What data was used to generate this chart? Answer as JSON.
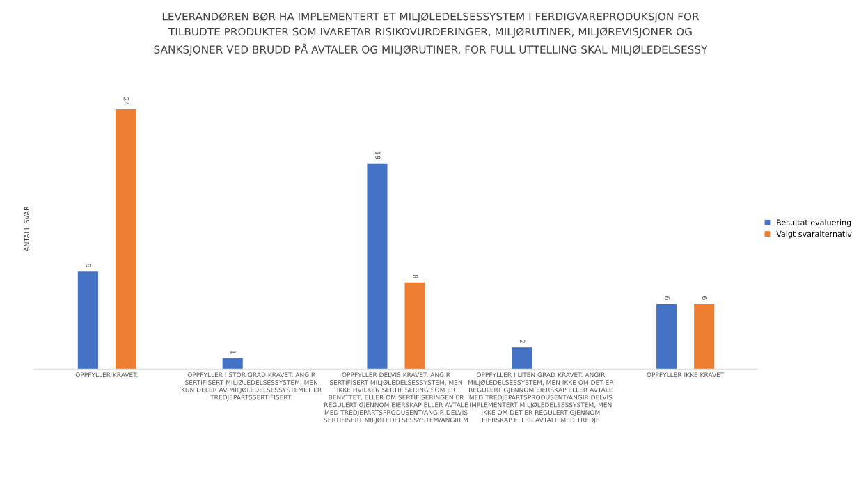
{
  "chart_data": {
    "type": "bar",
    "title": "LEVERANDØREN BØR HA IMPLEMENTERT ET MILJØLEDELSESSYSTEM I FERDIGVAREPRODUKSJON FOR\nTILBUDTE PRODUKTER SOM IVARETAR RISIKOVURDERINGER, MILJØRUTINER, MILJØREVISJONER OG\nSANKSJONER VED BRUDD PÅ AVTALER OG MILJØRUTINER. FOR FULL UTTELLING SKAL MILJØLEDELSESSY",
    "ylabel": "ANTALL SVAR",
    "categories": [
      "OPPFYLLER KRAVET.",
      "OPPFYLLER I STOR GRAD KRAVET. ANGIR\nSERTIFISERT MILJØLEDELSESSYSTEM, MEN\nKUN DELER AV MILJØLEDELSESSYSTEMET ER\nTREDJEPARTSSERTIFISERT.",
      "OPPFYLLER DELVIS KRAVET. ANGIR\nSERTIFISERT MILJØLEDELSESSYSTEM, MEN\nIKKE HVILKEN SERTIFISERING SOM ER\nBENYTTET, ELLER OM SERTIFISERINGEN ER\nREGULERT GJENNOM EIERSKAP ELLER AVTALE\nMED TREDJEPARTSPRODUSENT/ANGIR DELVIS\nSERTIFISERT MILJØLEDELSESSYSTEM/ANGIR M",
      "OPPFYLLER I LITEN GRAD KRAVET. ANGIR\nMILJØLEDELSESSYSTEM, MEN IKKE OM DET ER\nREGULERT GJENNOM EIERSKAP ELLER AVTALE\nMED TREDJEPARTSPRODUSENT/ANGIR DELVIS\nIMPLEMENTERT MILJØLEDELSESSYSTEM, MEN\nIKKE OM DET ER REGULERT GJENNOM\nEIERSKAP ELLER AVTALE MED TREDJE",
      "OPPFYLLER IKKE KRAVET"
    ],
    "series": [
      {
        "name": "Resultat evaluering",
        "color": "#4472c4",
        "values": [
          9,
          1,
          19,
          2,
          6
        ],
        "value_labels": [
          "9",
          "1",
          "19",
          "2",
          "6"
        ]
      },
      {
        "name": "Valgt svaralternativ",
        "color": "#ed7d31",
        "values": [
          24,
          0,
          8,
          0,
          6
        ],
        "value_labels": [
          "24",
          null,
          "8",
          null,
          "6"
        ]
      }
    ],
    "grid": false,
    "legend": "right"
  }
}
